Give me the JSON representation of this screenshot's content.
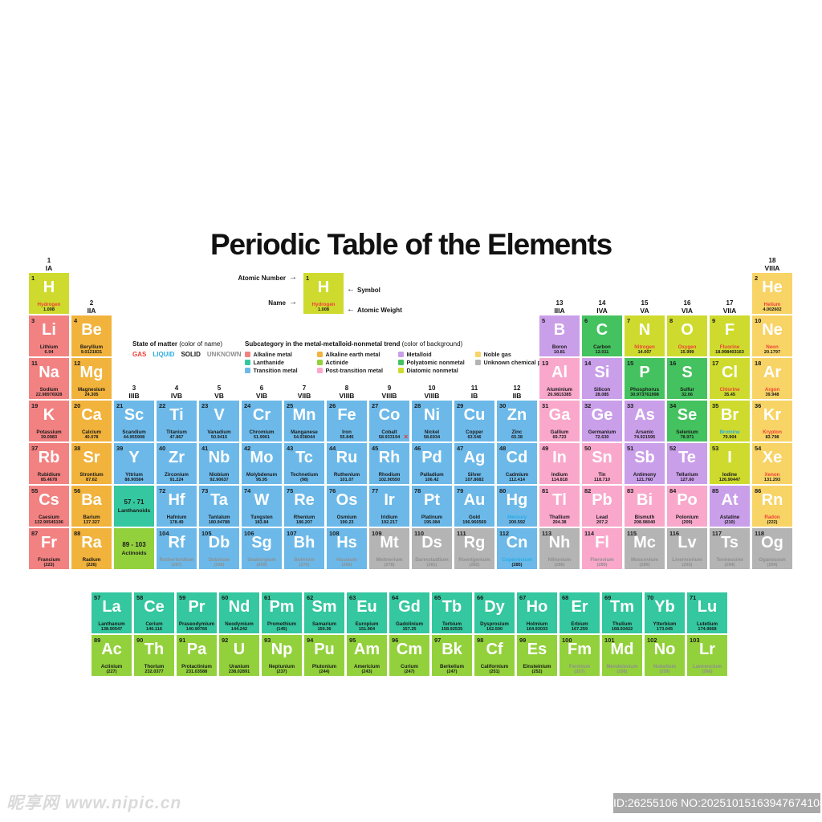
{
  "title": "Periodic Table of the Elements",
  "key": {
    "atomic_number_label": "Atomic Number",
    "name_label": "Name",
    "symbol_label": "Symbol",
    "atomic_weight_label": "Atomic Weight",
    "arrow_right": "→",
    "arrow_left": "←",
    "example": {
      "number": "1",
      "symbol": "H",
      "name": "Hydrogen",
      "weight": "1.008",
      "category": "dn",
      "state": "g"
    }
  },
  "state_legend": {
    "title": "State of matter",
    "title_suffix": " (color of name)",
    "items": [
      {
        "label": "GAS",
        "state": "g"
      },
      {
        "label": "LIQUID",
        "state": "l"
      },
      {
        "label": "SOLID",
        "state": "s"
      },
      {
        "label": "UNKNOWN",
        "state": "u"
      }
    ]
  },
  "category_legend": {
    "title": "Subcategory in the metal-metalloid-nonmetal trend",
    "title_suffix": " (color of background)",
    "columns": [
      [
        {
          "label": "Alkaline metal",
          "cat": "ak"
        },
        {
          "label": "Lanthanide",
          "cat": "ln"
        },
        {
          "label": "Transition metal",
          "cat": "tm"
        }
      ],
      [
        {
          "label": "Alkaline earth metal",
          "cat": "ae"
        },
        {
          "label": "Actinide",
          "cat": "an"
        },
        {
          "label": "Post-transition metal",
          "cat": "pt"
        }
      ],
      [
        {
          "label": "Metalloid",
          "cat": "md"
        },
        {
          "label": "Polyatomic nonmetal",
          "cat": "pn"
        },
        {
          "label": "Diatomic nonmetal",
          "cat": "dn"
        }
      ],
      [
        {
          "label": "Noble gas",
          "cat": "ng"
        },
        {
          "label": "Unknown chemical properties",
          "cat": "uk"
        }
      ]
    ]
  },
  "colors": {
    "category": {
      "ak": "#F28282",
      "ae": "#F1B33C",
      "tm": "#6CB9E9",
      "pt": "#F9A8CB",
      "md": "#CA9FE9",
      "pn": "#44C25F",
      "dn": "#CEDB2E",
      "ng": "#F8D466",
      "ln": "#35C79F",
      "an": "#93D13C",
      "uk": "#B4B4B4"
    },
    "state": {
      "g": "#EF4136",
      "l": "#29ABE2",
      "s": "#1A1A1A",
      "u": "#8E8E8E"
    }
  },
  "group_headers": [
    {
      "number": "1",
      "label": "IA",
      "col": 1,
      "row": 1
    },
    {
      "number": "2",
      "label": "IIA",
      "col": 2,
      "row": 2
    },
    {
      "number": "3",
      "label": "IIIB",
      "col": 3,
      "row": 4
    },
    {
      "number": "4",
      "label": "IVB",
      "col": 4,
      "row": 4
    },
    {
      "number": "5",
      "label": "VB",
      "col": 5,
      "row": 4
    },
    {
      "number": "6",
      "label": "VIB",
      "col": 6,
      "row": 4
    },
    {
      "number": "7",
      "label": "VIIB",
      "col": 7,
      "row": 4
    },
    {
      "number": "8",
      "label": "VIIIB",
      "col": 8,
      "row": 4
    },
    {
      "number": "9",
      "label": "VIIIB",
      "col": 9,
      "row": 4
    },
    {
      "number": "10",
      "label": "VIIIB",
      "col": 10,
      "row": 4
    },
    {
      "number": "11",
      "label": "IB",
      "col": 11,
      "row": 4
    },
    {
      "number": "12",
      "label": "IIB",
      "col": 12,
      "row": 4
    },
    {
      "number": "13",
      "label": "IIIA",
      "col": 13,
      "row": 2
    },
    {
      "number": "14",
      "label": "IVA",
      "col": 14,
      "row": 2
    },
    {
      "number": "15",
      "label": "VA",
      "col": 15,
      "row": 2
    },
    {
      "number": "16",
      "label": "VIA",
      "col": 16,
      "row": 2
    },
    {
      "number": "17",
      "label": "VIIA",
      "col": 17,
      "row": 2
    },
    {
      "number": "18",
      "label": "VIIIA",
      "col": 18,
      "row": 1
    }
  ],
  "elements": [
    [
      "1",
      "H",
      "Hydrogen",
      "1.008",
      "dn",
      "g",
      1,
      1
    ],
    [
      "2",
      "He",
      "Helium",
      "4.002602",
      "ng",
      "g",
      18,
      1
    ],
    [
      "3",
      "Li",
      "Lithium",
      "6.94",
      "ak",
      "s",
      1,
      2
    ],
    [
      "4",
      "Be",
      "Beryllium",
      "9.0121831",
      "ae",
      "s",
      2,
      2
    ],
    [
      "5",
      "B",
      "Boron",
      "10.81",
      "md",
      "s",
      13,
      2
    ],
    [
      "6",
      "C",
      "Carbon",
      "12.011",
      "pn",
      "s",
      14,
      2
    ],
    [
      "7",
      "N",
      "Nitrogen",
      "14.007",
      "dn",
      "g",
      15,
      2
    ],
    [
      "8",
      "O",
      "Oxygen",
      "15.999",
      "dn",
      "g",
      16,
      2
    ],
    [
      "9",
      "F",
      "Fluorine",
      "18.998403163",
      "dn",
      "g",
      17,
      2
    ],
    [
      "10",
      "Ne",
      "Neon",
      "20.1797",
      "ng",
      "g",
      18,
      2
    ],
    [
      "11",
      "Na",
      "Sodium",
      "22.98976928",
      "ak",
      "s",
      1,
      3
    ],
    [
      "12",
      "Mg",
      "Magnesium",
      "24.305",
      "ae",
      "s",
      2,
      3
    ],
    [
      "13",
      "Al",
      "Aluminium",
      "26.9815385",
      "pt",
      "s",
      13,
      3
    ],
    [
      "14",
      "Si",
      "Silicon",
      "28.085",
      "md",
      "s",
      14,
      3
    ],
    [
      "15",
      "P",
      "Phosphorus",
      "30.973761998",
      "pn",
      "s",
      15,
      3
    ],
    [
      "16",
      "S",
      "Sulfur",
      "32.06",
      "pn",
      "s",
      16,
      3
    ],
    [
      "17",
      "Cl",
      "Chlorine",
      "35.45",
      "dn",
      "g",
      17,
      3
    ],
    [
      "18",
      "Ar",
      "Argon",
      "39.948",
      "ng",
      "g",
      18,
      3
    ],
    [
      "19",
      "K",
      "Potassium",
      "39.0983",
      "ak",
      "s",
      1,
      4
    ],
    [
      "20",
      "Ca",
      "Calcium",
      "40.078",
      "ae",
      "s",
      2,
      4
    ],
    [
      "21",
      "Sc",
      "Scandium",
      "44.955908",
      "tm",
      "s",
      3,
      4
    ],
    [
      "22",
      "Ti",
      "Titanium",
      "47.867",
      "tm",
      "s",
      4,
      4
    ],
    [
      "23",
      "V",
      "Vanadium",
      "50.9415",
      "tm",
      "s",
      5,
      4
    ],
    [
      "24",
      "Cr",
      "Chromium",
      "51.9961",
      "tm",
      "s",
      6,
      4
    ],
    [
      "25",
      "Mn",
      "Manganese",
      "54.938044",
      "tm",
      "s",
      7,
      4
    ],
    [
      "26",
      "Fe",
      "Iron",
      "55.845",
      "tm",
      "s",
      8,
      4
    ],
    [
      "27",
      "Co",
      "Cobalt",
      "58.933194",
      "tm",
      "s",
      9,
      4
    ],
    [
      "28",
      "Ni",
      "Nickel",
      "58.6934",
      "tm",
      "s",
      10,
      4
    ],
    [
      "29",
      "Cu",
      "Copper",
      "63.546",
      "tm",
      "s",
      11,
      4
    ],
    [
      "30",
      "Zn",
      "Zinc",
      "65.38",
      "tm",
      "s",
      12,
      4
    ],
    [
      "31",
      "Ga",
      "Gallium",
      "69.723",
      "pt",
      "s",
      13,
      4
    ],
    [
      "32",
      "Ge",
      "Germanium",
      "72.630",
      "md",
      "s",
      14,
      4
    ],
    [
      "33",
      "As",
      "Arsenic",
      "74.921595",
      "md",
      "s",
      15,
      4
    ],
    [
      "34",
      "Se",
      "Selenium",
      "78.971",
      "pn",
      "s",
      16,
      4
    ],
    [
      "35",
      "Br",
      "Bromine",
      "79.904",
      "dn",
      "l",
      17,
      4
    ],
    [
      "36",
      "Kr",
      "Krypton",
      "83.798",
      "ng",
      "g",
      18,
      4
    ],
    [
      "37",
      "Rb",
      "Rubidium",
      "85.4678",
      "ak",
      "s",
      1,
      5
    ],
    [
      "38",
      "Sr",
      "Strontium",
      "87.62",
      "ae",
      "s",
      2,
      5
    ],
    [
      "39",
      "Y",
      "Yttrium",
      "88.90584",
      "tm",
      "s",
      3,
      5
    ],
    [
      "40",
      "Zr",
      "Zirconium",
      "91.224",
      "tm",
      "s",
      4,
      5
    ],
    [
      "41",
      "Nb",
      "Niobium",
      "92.90637",
      "tm",
      "s",
      5,
      5
    ],
    [
      "42",
      "Mo",
      "Molybdenum",
      "95.95",
      "tm",
      "s",
      6,
      5
    ],
    [
      "43",
      "Tc",
      "Technetium",
      "(98)",
      "tm",
      "s",
      7,
      5
    ],
    [
      "44",
      "Ru",
      "Ruthenium",
      "101.07",
      "tm",
      "s",
      8,
      5
    ],
    [
      "45",
      "Rh",
      "Rhodium",
      "102.90550",
      "tm",
      "s",
      9,
      5
    ],
    [
      "46",
      "Pd",
      "Palladium",
      "106.42",
      "tm",
      "s",
      10,
      5
    ],
    [
      "47",
      "Ag",
      "Silver",
      "107.8682",
      "tm",
      "s",
      11,
      5
    ],
    [
      "48",
      "Cd",
      "Cadmium",
      "112.414",
      "tm",
      "s",
      12,
      5
    ],
    [
      "49",
      "In",
      "Indium",
      "114.818",
      "pt",
      "s",
      13,
      5
    ],
    [
      "50",
      "Sn",
      "Tin",
      "118.710",
      "pt",
      "s",
      14,
      5
    ],
    [
      "51",
      "Sb",
      "Antimony",
      "121.760",
      "md",
      "s",
      15,
      5
    ],
    [
      "52",
      "Te",
      "Tellurium",
      "127.60",
      "md",
      "s",
      16,
      5
    ],
    [
      "53",
      "I",
      "Iodine",
      "126.90447",
      "dn",
      "s",
      17,
      5
    ],
    [
      "54",
      "Xe",
      "Xenon",
      "131.293",
      "ng",
      "g",
      18,
      5
    ],
    [
      "55",
      "Cs",
      "Caesium",
      "132.90545196",
      "ak",
      "s",
      1,
      6
    ],
    [
      "56",
      "Ba",
      "Barium",
      "137.327",
      "ae",
      "s",
      2,
      6
    ],
    [
      "72",
      "Hf",
      "Hafnium",
      "178.49",
      "tm",
      "s",
      4,
      6
    ],
    [
      "73",
      "Ta",
      "Tantalum",
      "180.94788",
      "tm",
      "s",
      5,
      6
    ],
    [
      "74",
      "W",
      "Tungsten",
      "183.84",
      "tm",
      "s",
      6,
      6
    ],
    [
      "75",
      "Re",
      "Rhenium",
      "186.207",
      "tm",
      "s",
      7,
      6
    ],
    [
      "76",
      "Os",
      "Osmium",
      "190.23",
      "tm",
      "s",
      8,
      6
    ],
    [
      "77",
      "Ir",
      "Iridium",
      "192.217",
      "tm",
      "s",
      9,
      6
    ],
    [
      "78",
      "Pt",
      "Platinum",
      "195.084",
      "tm",
      "s",
      10,
      6
    ],
    [
      "79",
      "Au",
      "Gold",
      "196.966569",
      "tm",
      "s",
      11,
      6
    ],
    [
      "80",
      "Hg",
      "Mercury",
      "200.592",
      "tm",
      "l",
      12,
      6
    ],
    [
      "81",
      "Tl",
      "Thallium",
      "204.38",
      "pt",
      "s",
      13,
      6
    ],
    [
      "82",
      "Pb",
      "Lead",
      "207.2",
      "pt",
      "s",
      14,
      6
    ],
    [
      "83",
      "Bi",
      "Bismuth",
      "208.98040",
      "pt",
      "s",
      15,
      6
    ],
    [
      "84",
      "Po",
      "Polonium",
      "(209)",
      "pt",
      "s",
      16,
      6
    ],
    [
      "85",
      "At",
      "Astatine",
      "(210)",
      "md",
      "s",
      17,
      6
    ],
    [
      "86",
      "Rn",
      "Radon",
      "(222)",
      "ng",
      "g",
      18,
      6
    ],
    [
      "87",
      "Fr",
      "Francium",
      "(223)",
      "ak",
      "s",
      1,
      7
    ],
    [
      "88",
      "Ra",
      "Radium",
      "(226)",
      "ae",
      "s",
      2,
      7
    ],
    [
      "104",
      "Rf",
      "Rutherfordium",
      "(267)",
      "tm",
      "u",
      4,
      7
    ],
    [
      "105",
      "Db",
      "Dubnium",
      "(268)",
      "tm",
      "u",
      5,
      7
    ],
    [
      "106",
      "Sg",
      "Seaborgium",
      "(269)",
      "tm",
      "u",
      6,
      7
    ],
    [
      "107",
      "Bh",
      "Bohrium",
      "(270)",
      "tm",
      "u",
      7,
      7
    ],
    [
      "108",
      "Hs",
      "Hassium",
      "(269)",
      "tm",
      "u",
      8,
      7
    ],
    [
      "109",
      "Mt",
      "Meitnerium",
      "(278)",
      "uk",
      "u",
      9,
      7
    ],
    [
      "110",
      "Ds",
      "Darmstadtium",
      "(281)",
      "uk",
      "u",
      10,
      7
    ],
    [
      "111",
      "Rg",
      "Roentgenium",
      "(282)",
      "uk",
      "u",
      11,
      7
    ],
    [
      "112",
      "Cn",
      "Copernicium",
      "(285)",
      "tm",
      "l",
      12,
      7
    ],
    [
      "113",
      "Nh",
      "Nihonium",
      "(286)",
      "uk",
      "u",
      13,
      7
    ],
    [
      "114",
      "Fl",
      "Flerovium",
      "(289)",
      "pt",
      "u",
      14,
      7
    ],
    [
      "115",
      "Mc",
      "Moscovium",
      "(289)",
      "uk",
      "u",
      15,
      7
    ],
    [
      "116",
      "Lv",
      "Livermorium",
      "(293)",
      "uk",
      "u",
      16,
      7
    ],
    [
      "117",
      "Ts",
      "Tennessine",
      "(294)",
      "uk",
      "u",
      17,
      7
    ],
    [
      "118",
      "Og",
      "Oganesson",
      "(294)",
      "uk",
      "u",
      18,
      7
    ]
  ],
  "lanthanides": [
    [
      "57",
      "La",
      "Lanthanum",
      "138.90547",
      "ln",
      "s"
    ],
    [
      "58",
      "Ce",
      "Cerium",
      "140.116",
      "ln",
      "s"
    ],
    [
      "59",
      "Pr",
      "Praseodymium",
      "140.90766",
      "ln",
      "s"
    ],
    [
      "60",
      "Nd",
      "Neodymium",
      "144.242",
      "ln",
      "s"
    ],
    [
      "61",
      "Pm",
      "Promethium",
      "(145)",
      "ln",
      "s"
    ],
    [
      "62",
      "Sm",
      "Samarium",
      "150.36",
      "ln",
      "s"
    ],
    [
      "63",
      "Eu",
      "Europium",
      "151.964",
      "ln",
      "s"
    ],
    [
      "64",
      "Gd",
      "Gadolinium",
      "157.25",
      "ln",
      "s"
    ],
    [
      "65",
      "Tb",
      "Terbium",
      "158.92535",
      "ln",
      "s"
    ],
    [
      "66",
      "Dy",
      "Dysprosium",
      "162.500",
      "ln",
      "s"
    ],
    [
      "67",
      "Ho",
      "Holmium",
      "164.93033",
      "ln",
      "s"
    ],
    [
      "68",
      "Er",
      "Erbium",
      "167.259",
      "ln",
      "s"
    ],
    [
      "69",
      "Tm",
      "Thulium",
      "168.93422",
      "ln",
      "s"
    ],
    [
      "70",
      "Yb",
      "Ytterbium",
      "173.045",
      "ln",
      "s"
    ],
    [
      "71",
      "Lu",
      "Lutetium",
      "174.9668",
      "ln",
      "s"
    ]
  ],
  "actinides": [
    [
      "89",
      "Ac",
      "Actinium",
      "(227)",
      "an",
      "s"
    ],
    [
      "90",
      "Th",
      "Thorium",
      "232.0377",
      "an",
      "s"
    ],
    [
      "91",
      "Pa",
      "Protactinium",
      "231.03588",
      "an",
      "s"
    ],
    [
      "92",
      "U",
      "Uranium",
      "238.02891",
      "an",
      "s"
    ],
    [
      "93",
      "Np",
      "Neptunium",
      "(237)",
      "an",
      "s"
    ],
    [
      "94",
      "Pu",
      "Plutonium",
      "(244)",
      "an",
      "s"
    ],
    [
      "95",
      "Am",
      "Americium",
      "(243)",
      "an",
      "s"
    ],
    [
      "96",
      "Cm",
      "Curium",
      "(247)",
      "an",
      "s"
    ],
    [
      "97",
      "Bk",
      "Berkelium",
      "(247)",
      "an",
      "s"
    ],
    [
      "98",
      "Cf",
      "Californium",
      "(251)",
      "an",
      "s"
    ],
    [
      "99",
      "Es",
      "Einsteinium",
      "(252)",
      "an",
      "s"
    ],
    [
      "100",
      "Fm",
      "Fermium",
      "(257)",
      "an",
      "u"
    ],
    [
      "101",
      "Md",
      "Mendelevium",
      "(258)",
      "an",
      "u"
    ],
    [
      "102",
      "No",
      "Nobelium",
      "(259)",
      "an",
      "u"
    ],
    [
      "103",
      "Lr",
      "Lawrencium",
      "(266)",
      "an",
      "u"
    ]
  ],
  "placeholders": [
    {
      "line1": "57 - 71",
      "line2": "Lanthanoids",
      "cat": "ln",
      "col": 3,
      "row": 6
    },
    {
      "line1": "89 - 103",
      "line2": "Actinoids",
      "cat": "an",
      "col": 3,
      "row": 7
    }
  ],
  "watermark": {
    "site": "昵享网 www.nipic.cn",
    "id_text": "ID:26255106 NO:20251015163947674108",
    "artifact": "×"
  }
}
